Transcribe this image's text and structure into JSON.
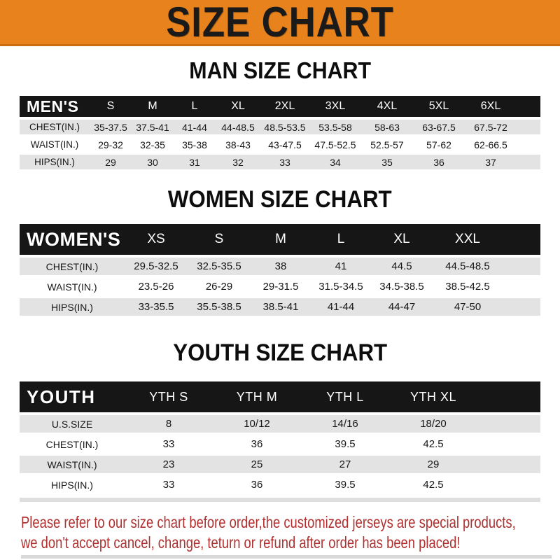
{
  "banner": {
    "title": "SIZE CHART"
  },
  "colors": {
    "banner_bg": "#E8821C",
    "band_bg": "#161616",
    "row_alt_bg": "#E3E3E3",
    "notice_color": "#B03030"
  },
  "sections": [
    {
      "heading": "MAN SIZE CHART",
      "header_label": "MEN'S",
      "columns": [
        "S",
        "M",
        "L",
        "XL",
        "2XL",
        "3XL",
        "4XL",
        "5XL",
        "6XL"
      ],
      "rows": [
        {
          "label": "CHEST(IN.)",
          "values": [
            "35-37.5",
            "37.5-41",
            "41-44",
            "44-48.5",
            "48.5-53.5",
            "53.5-58",
            "58-63",
            "63-67.5",
            "67.5-72"
          ]
        },
        {
          "label": "WAIST(IN.)",
          "values": [
            "29-32",
            "32-35",
            "35-38",
            "38-43",
            "43-47.5",
            "47.5-52.5",
            "52.5-57",
            "57-62",
            "62-66.5"
          ]
        },
        {
          "label": "HIPS(IN.)",
          "values": [
            "29",
            "30",
            "31",
            "32",
            "33",
            "34",
            "35",
            "36",
            "37"
          ]
        }
      ]
    },
    {
      "heading": "WOMEN SIZE CHART",
      "header_label": "WOMEN'S",
      "columns": [
        "XS",
        "S",
        "M",
        "L",
        "XL",
        "XXL"
      ],
      "rows": [
        {
          "label": "CHEST(IN.)",
          "values": [
            "29.5-32.5",
            "32.5-35.5",
            "38",
            "41",
            "44.5",
            "44.5-48.5"
          ]
        },
        {
          "label": "WAIST(IN.)",
          "values": [
            "23.5-26",
            "26-29",
            "29-31.5",
            "31.5-34.5",
            "34.5-38.5",
            "38.5-42.5"
          ]
        },
        {
          "label": "HIPS(IN.)",
          "values": [
            "33-35.5",
            "35.5-38.5",
            "38.5-41",
            "41-44",
            "44-47",
            "47-50"
          ]
        }
      ]
    },
    {
      "heading": "YOUTH SIZE CHART",
      "header_label": "YOUTH",
      "columns": [
        "YTH S",
        "YTH M",
        "YTH L",
        "YTH XL"
      ],
      "rows": [
        {
          "label": "U.S.SIZE",
          "values": [
            "8",
            "10/12",
            "14/16",
            "18/20"
          ]
        },
        {
          "label": "CHEST(IN.)",
          "values": [
            "33",
            "36",
            "39.5",
            "42.5"
          ]
        },
        {
          "label": "WAIST(IN.)",
          "values": [
            "23",
            "25",
            "27",
            "29"
          ]
        },
        {
          "label": "HIPS(IN.)",
          "values": [
            "33",
            "36",
            "39.5",
            "42.5"
          ]
        }
      ]
    }
  ],
  "footer": {
    "line1": "Please refer to our size chart before order,the customized jerseys are special products,",
    "line2": "we don't accept cancel, change, teturn or refund after order has been placed!"
  }
}
